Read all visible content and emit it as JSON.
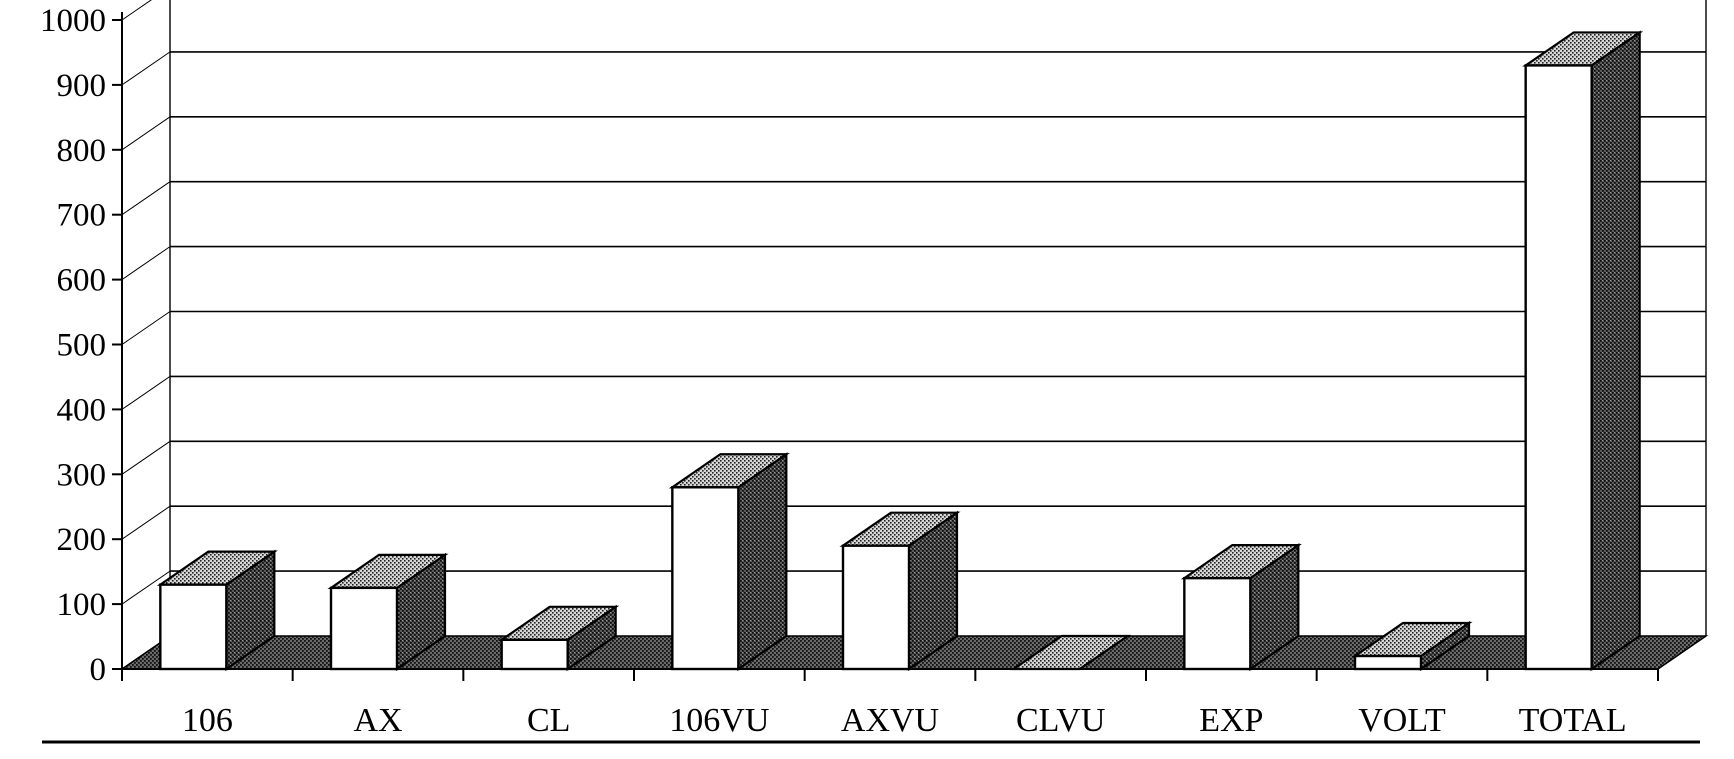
{
  "chart_data": {
    "type": "bar",
    "title": "",
    "xlabel": "",
    "ylabel": "",
    "categories": [
      "106",
      "AX",
      "CL",
      "106VU",
      "AXVU",
      "CLVU",
      "EXP",
      "VOLT",
      "TOTAL"
    ],
    "values": [
      130,
      125,
      45,
      280,
      190,
      0,
      140,
      20,
      930
    ],
    "ylim": [
      0,
      1000
    ],
    "yticks": [
      0,
      100,
      200,
      300,
      400,
      500,
      600,
      700,
      800,
      900,
      1000
    ],
    "grid": true,
    "legend": "none",
    "three_d": true,
    "colors": {
      "bar_front": "#ffffff",
      "bar_side": "#3a3a3a",
      "bar_top": "#bdbdbd",
      "floor": "#4a4a4a",
      "grid": "#000000"
    }
  }
}
